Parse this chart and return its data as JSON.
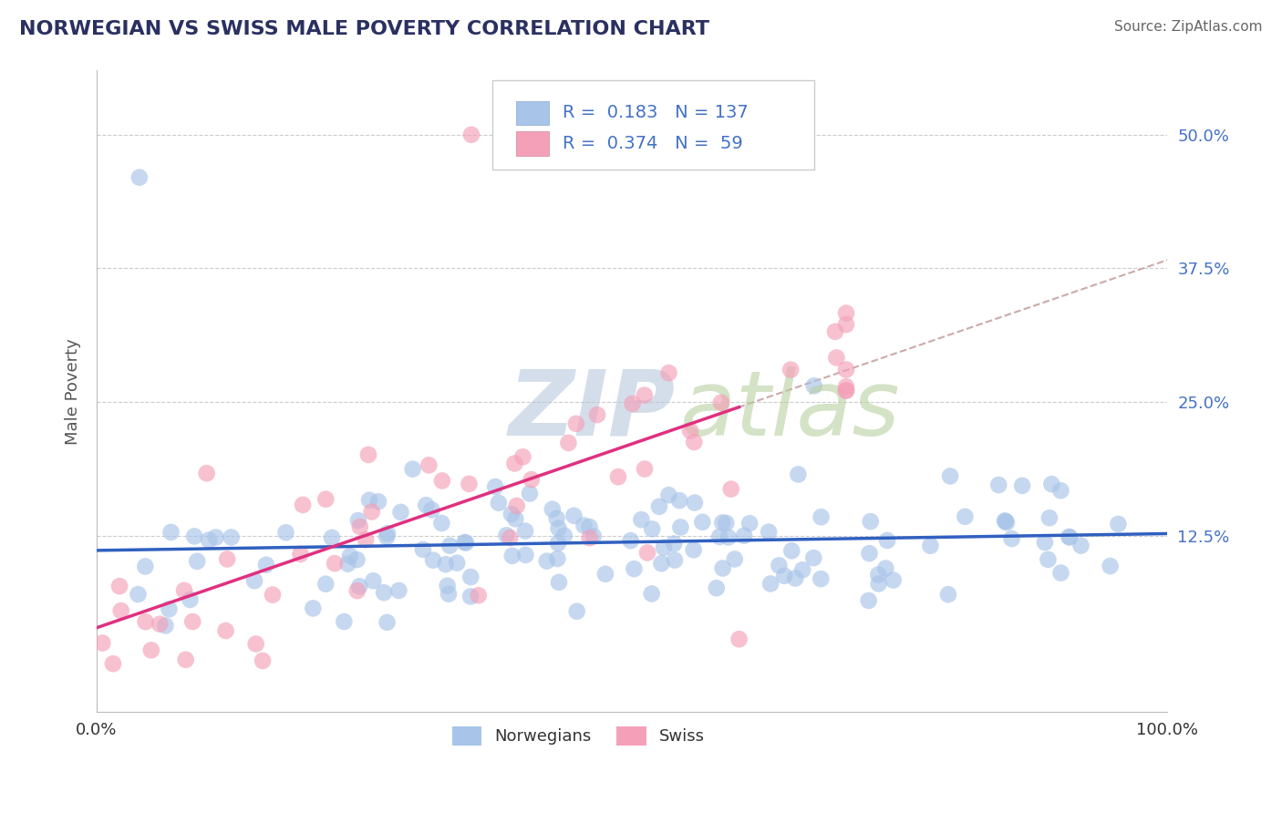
{
  "title": "NORWEGIAN VS SWISS MALE POVERTY CORRELATION CHART",
  "source": "Source: ZipAtlas.com",
  "ylabel": "Male Poverty",
  "xlim": [
    0.0,
    1.0
  ],
  "ylim": [
    -0.04,
    0.56
  ],
  "blue_R": 0.183,
  "blue_N": 137,
  "pink_R": 0.374,
  "pink_N": 59,
  "blue_color": "#a8c4e8",
  "pink_color": "#f4a0b8",
  "blue_line_color": "#3060c0",
  "pink_line_color": "#e03080",
  "dashed_line_color": "#ccaaaa",
  "grid_color": "#cccccc",
  "background_color": "#ffffff",
  "legend_color": "#4472c4",
  "title_color": "#2a3060",
  "source_color": "#666666",
  "axis_label_color": "#555555",
  "ytick_color": "#4472c4",
  "xtick_color": "#333333"
}
